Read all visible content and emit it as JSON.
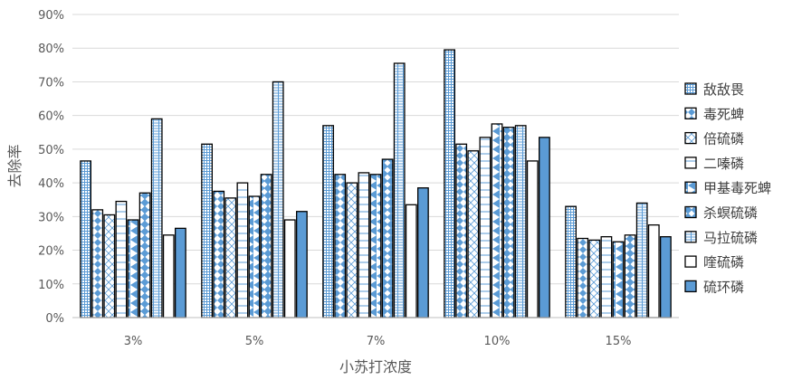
{
  "chart_data": {
    "type": "bar",
    "title": "",
    "xlabel": "小苏打浓度",
    "ylabel": "去除率",
    "ylim": [
      0,
      90
    ],
    "yticks": [
      "0%",
      "10%",
      "20%",
      "30%",
      "40%",
      "50%",
      "60%",
      "70%",
      "80%",
      "90%"
    ],
    "grid": true,
    "legend_position": "right",
    "categories": [
      "3%",
      "5%",
      "7%",
      "10%",
      "15%"
    ],
    "series": [
      {
        "name": "敌敌畏",
        "values": [
          46.5,
          51.5,
          57.0,
          79.5,
          33.0
        ]
      },
      {
        "name": "毒死蜱",
        "values": [
          32.0,
          37.5,
          42.5,
          51.5,
          23.5
        ]
      },
      {
        "name": "倍硫磷",
        "values": [
          30.5,
          35.5,
          40.0,
          49.5,
          23.0
        ]
      },
      {
        "name": "二嗪磷",
        "values": [
          34.5,
          40.0,
          43.0,
          53.5,
          24.0
        ]
      },
      {
        "name": "甲基毒死蜱",
        "values": [
          29.0,
          36.0,
          42.5,
          57.5,
          22.5
        ]
      },
      {
        "name": "杀螟硫磷",
        "values": [
          37.0,
          42.5,
          47.0,
          56.5,
          24.5
        ]
      },
      {
        "name": "马拉硫磷",
        "values": [
          59.0,
          70.0,
          75.5,
          57.0,
          34.0
        ]
      },
      {
        "name": "喹硫磷",
        "values": [
          24.5,
          29.0,
          33.5,
          46.5,
          27.5
        ]
      },
      {
        "name": "硫环磷",
        "values": [
          26.5,
          31.5,
          38.5,
          53.5,
          24.0
        ]
      }
    ],
    "colors": {
      "accent": "#5b9bd5",
      "outline": "#000000",
      "grid": "#d9d9d9",
      "text": "#595959"
    }
  }
}
